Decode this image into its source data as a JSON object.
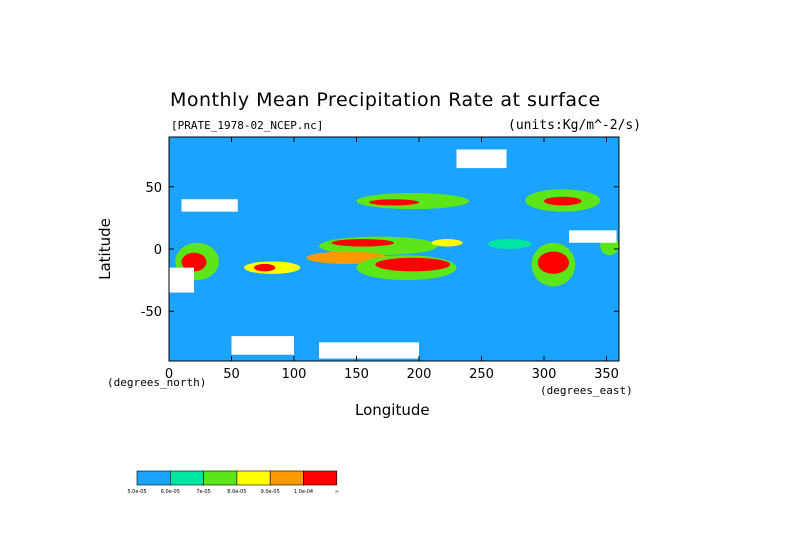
{
  "chart_data": {
    "type": "heatmap",
    "title": "Monthly Mean Precipitation Rate at surface",
    "file_label": "[PRATE_1978-02_NCEP.nc]",
    "units_label": "(units:Kg/m^-2/s)",
    "xlabel": "Longitude",
    "ylabel": "Latitude",
    "x_unit_label": "(degrees_east)",
    "y_unit_label": "(degrees_north)",
    "xlim": [
      0,
      360
    ],
    "ylim": [
      -90,
      90
    ],
    "x_ticks": [
      0,
      50,
      100,
      150,
      200,
      250,
      300,
      350
    ],
    "y_ticks": [
      50,
      0,
      -50
    ],
    "colorbar": {
      "colors": [
        "#1aa3ff",
        "#00e6a0",
        "#5ce61a",
        "#ffff00",
        "#ff9900",
        "#ff0000"
      ],
      "labels": [
        "5.0e-05",
        "6.0e-05",
        "7e-05",
        "8.0e-05",
        "9.0e-05",
        "1.0e-04",
        "∞"
      ]
    },
    "background_color": "#1aa3ff",
    "regions": [
      {
        "lon": [
          5,
          40
        ],
        "lat": [
          -25,
          5
        ],
        "level": 2
      },
      {
        "lon": [
          10,
          30
        ],
        "lat": [
          -18,
          -3
        ],
        "level": 5
      },
      {
        "lon": [
          60,
          105
        ],
        "lat": [
          -20,
          -10
        ],
        "level": 3
      },
      {
        "lon": [
          68,
          85
        ],
        "lat": [
          -18,
          -12
        ],
        "level": 5
      },
      {
        "lon": [
          120,
          215
        ],
        "lat": [
          -5,
          10
        ],
        "level": 2
      },
      {
        "lon": [
          130,
          180
        ],
        "lat": [
          2,
          8
        ],
        "level": 5
      },
      {
        "lon": [
          110,
          175
        ],
        "lat": [
          -12,
          -2
        ],
        "level": 4
      },
      {
        "lon": [
          150,
          230
        ],
        "lat": [
          -25,
          -5
        ],
        "level": 2
      },
      {
        "lon": [
          165,
          225
        ],
        "lat": [
          -18,
          -7
        ],
        "level": 5
      },
      {
        "lon": [
          210,
          235
        ],
        "lat": [
          2,
          8
        ],
        "level": 3
      },
      {
        "lon": [
          150,
          240
        ],
        "lat": [
          32,
          45
        ],
        "level": 2
      },
      {
        "lon": [
          160,
          200
        ],
        "lat": [
          35,
          40
        ],
        "level": 5
      },
      {
        "lon": [
          285,
          345
        ],
        "lat": [
          30,
          48
        ],
        "level": 2
      },
      {
        "lon": [
          300,
          330
        ],
        "lat": [
          35,
          42
        ],
        "level": 5
      },
      {
        "lon": [
          290,
          325
        ],
        "lat": [
          -30,
          5
        ],
        "level": 2
      },
      {
        "lon": [
          295,
          320
        ],
        "lat": [
          -20,
          -2
        ],
        "level": 5
      },
      {
        "lon": [
          345,
          360
        ],
        "lat": [
          -5,
          10
        ],
        "level": 2
      },
      {
        "lon": [
          255,
          290
        ],
        "lat": [
          0,
          8
        ],
        "level": 1
      }
    ],
    "missing_regions": [
      {
        "lon": [
          0,
          20
        ],
        "lat": [
          -35,
          -15
        ]
      },
      {
        "lon": [
          50,
          100
        ],
        "lat": [
          -85,
          -70
        ]
      },
      {
        "lon": [
          120,
          200
        ],
        "lat": [
          -88,
          -75
        ]
      },
      {
        "lon": [
          10,
          55
        ],
        "lat": [
          30,
          40
        ]
      },
      {
        "lon": [
          320,
          358
        ],
        "lat": [
          5,
          15
        ]
      },
      {
        "lon": [
          230,
          270
        ],
        "lat": [
          65,
          80
        ]
      }
    ]
  }
}
